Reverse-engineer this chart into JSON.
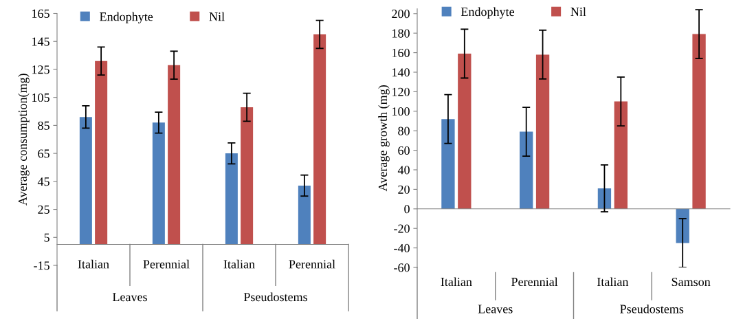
{
  "chart_data": [
    {
      "type": "bar",
      "ylabel": "Average consumption(mg)",
      "categories": [
        "Italian",
        "Perennial",
        "Italian",
        "Perennial"
      ],
      "annotations": [
        "Leaves",
        "Pseudostems"
      ],
      "ylim": [
        -15,
        165
      ],
      "yticks": [
        -15,
        5,
        25,
        45,
        65,
        85,
        105,
        125,
        145,
        165
      ],
      "legend": "top left",
      "series": [
        {
          "name": "Endophyte",
          "color": "#4f81bd",
          "values": [
            91,
            87,
            65,
            42
          ],
          "errors": [
            8,
            7.5,
            7.5,
            7.5
          ]
        },
        {
          "name": "Nil",
          "color": "#c0504d",
          "values": [
            131,
            128,
            98,
            150
          ],
          "errors": [
            10,
            10,
            10,
            10
          ]
        }
      ]
    },
    {
      "type": "bar",
      "ylabel": "Average growth (mg)",
      "categories": [
        "Italian",
        "Perennial",
        "Italian",
        "Samson"
      ],
      "annotations": [
        "Leaves",
        "Pseudostems"
      ],
      "ylim": [
        -60,
        205
      ],
      "yticks": [
        -60,
        -40,
        -20,
        0,
        20,
        40,
        60,
        80,
        100,
        120,
        140,
        160,
        180,
        200
      ],
      "legend": "top left",
      "series": [
        {
          "name": "Endophyte",
          "color": "#4f81bd",
          "values": [
            92,
            79,
            21,
            -35
          ],
          "errors": [
            25,
            25,
            24,
            25
          ]
        },
        {
          "name": "Nil",
          "color": "#c0504d",
          "values": [
            159,
            158,
            110,
            179
          ],
          "errors": [
            25,
            25,
            25,
            25
          ]
        }
      ]
    }
  ]
}
